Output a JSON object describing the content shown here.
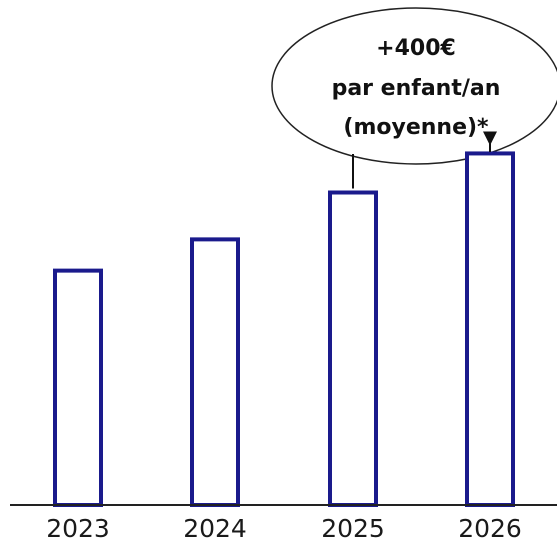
{
  "chart_data": {
    "type": "bar",
    "categories": [
      "2023",
      "2024",
      "2025",
      "2026"
    ],
    "values": [
      3.0,
      3.4,
      4.0,
      4.5
    ],
    "ylim": [
      0,
      4.8
    ],
    "title": "",
    "xlabel": "",
    "ylabel": "",
    "grid": false,
    "legend": "none",
    "colors": {
      "bar_stroke": "#1a1a8c",
      "bar_fill": "#ffffff",
      "axis": "#222222",
      "text": "#111111"
    },
    "annotation": {
      "lines": [
        "+400€",
        "par enfant/an",
        "(moyenne)*"
      ],
      "points_to": [
        "2025",
        "2026"
      ]
    }
  }
}
